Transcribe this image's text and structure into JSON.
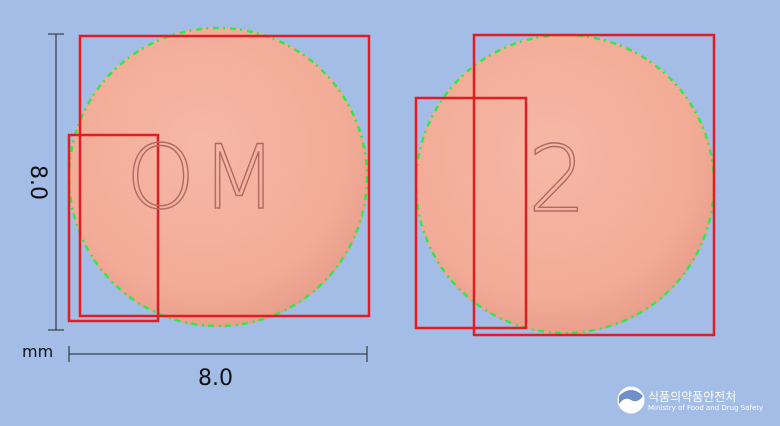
{
  "image": {
    "background_color": "#a3bde6",
    "tablet_color": "#f2ab97",
    "tablet_edge_color": "#e59a86",
    "imprint_color": "#b06a63",
    "annotation_box_color": "#e31b23",
    "contour_color": "#34e64a"
  },
  "dimensions": {
    "unit": "mm",
    "width_label": "8.0",
    "height_label": "8.0"
  },
  "tablets": [
    {
      "imprint": "OM"
    },
    {
      "imprint": "2"
    }
  ],
  "logo": {
    "name_ko": "식품의약품안전처",
    "name_en": "Ministry of Food and Drug Safety"
  }
}
